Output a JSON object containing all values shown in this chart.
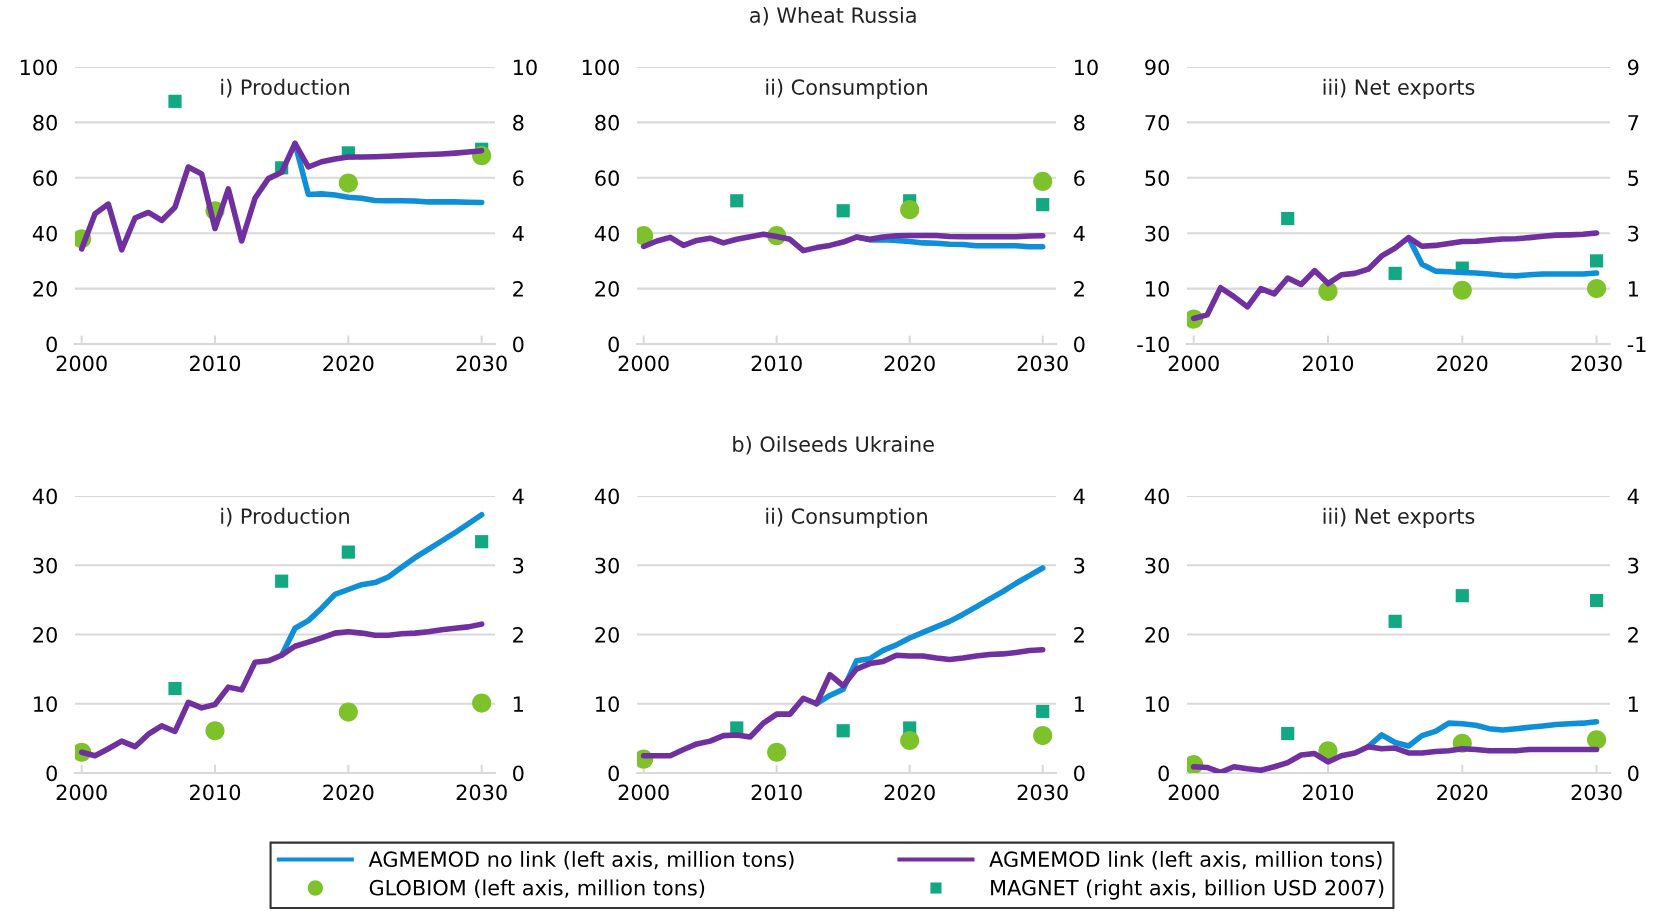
{
  "chart_data": [
    {
      "type": "line",
      "title": "i) Production",
      "ylim": [
        0,
        100
      ],
      "yticks": [
        0,
        20,
        40,
        60,
        80,
        100
      ],
      "y2lim": [
        0,
        10
      ],
      "y2ticks": [
        0,
        2,
        4,
        6,
        8,
        10
      ],
      "xlim": [
        1999.5,
        2031
      ],
      "xticks": [
        2000,
        2010,
        2020,
        2030
      ],
      "grid": "y",
      "legend": "bottom",
      "series": [
        {
          "name": "AGMEMOD no link (left axis, million tons)",
          "color": "#0f8fd8",
          "x": [
            2016,
            2017,
            2018,
            2019,
            2020,
            2021,
            2022,
            2023,
            2024,
            2025,
            2026,
            2027,
            2028,
            2029,
            2030
          ],
          "values": [
            72.4,
            54,
            54.2,
            53.8,
            53,
            52.6,
            51.8,
            51.7,
            51.7,
            51.6,
            51.3,
            51.3,
            51.3,
            51.2,
            51.1
          ]
        },
        {
          "name": "AGMEMOD link (left axis, million tons)",
          "color": "#7030a0",
          "x": [
            2000,
            2001,
            2002,
            2003,
            2004,
            2005,
            2006,
            2007,
            2008,
            2009,
            2010,
            2011,
            2012,
            2013,
            2014,
            2015,
            2016,
            2017,
            2018,
            2019,
            2020,
            2021,
            2022,
            2023,
            2024,
            2025,
            2026,
            2027,
            2028,
            2029,
            2030
          ],
          "values": [
            34.3,
            47,
            50.5,
            34,
            45.5,
            47.5,
            44.6,
            49.4,
            63.9,
            61.4,
            41.7,
            56,
            37.2,
            52.6,
            59.7,
            62,
            72.4,
            63.9,
            65.8,
            66.8,
            67.5,
            67.5,
            67.6,
            67.8,
            68,
            68.2,
            68.4,
            68.6,
            68.9,
            69.3,
            69.8
          ]
        },
        {
          "name": "GLOBIOM (left axis, million tons)",
          "type": "scatter",
          "marker": "circle",
          "color": "#7dc22a",
          "x": [
            2000,
            2010,
            2020,
            2030
          ],
          "values": [
            38,
            48.1,
            58.1,
            68
          ]
        },
        {
          "name": "MAGNET (right axis, billion USD 2007)",
          "type": "scatter",
          "marker": "square",
          "axis": "y2",
          "color": "#11a882",
          "x": [
            2007,
            2015,
            2020,
            2030
          ],
          "values": [
            8.76,
            6.36,
            6.9,
            7.03
          ]
        }
      ]
    },
    {
      "type": "line",
      "subtitle": "a) Wheat Russia",
      "title": "ii) Consumption",
      "ylim": [
        0,
        100
      ],
      "yticks": [
        0,
        20,
        40,
        60,
        80,
        100
      ],
      "y2lim": [
        0,
        10
      ],
      "y2ticks": [
        0,
        2,
        4,
        6,
        8,
        10
      ],
      "xlim": [
        1999.5,
        2031
      ],
      "xticks": [
        2000,
        2010,
        2020,
        2030
      ],
      "grid": "y",
      "legend": "bottom",
      "series": [
        {
          "name": "AGMEMOD no link (left axis, million tons)",
          "color": "#0f8fd8",
          "x": [
            2016,
            2017,
            2018,
            2019,
            2020,
            2021,
            2022,
            2023,
            2024,
            2025,
            2026,
            2027,
            2028,
            2029,
            2030
          ],
          "values": [
            38.6,
            37.6,
            37.6,
            37.4,
            37,
            36.5,
            36.4,
            36,
            35.9,
            35.5,
            35.5,
            35.5,
            35.5,
            35.1,
            35.1
          ]
        },
        {
          "name": "AGMEMOD link (left axis, million tons)",
          "color": "#7030a0",
          "x": [
            2000,
            2001,
            2002,
            2003,
            2004,
            2005,
            2006,
            2007,
            2008,
            2009,
            2010,
            2011,
            2012,
            2013,
            2014,
            2015,
            2016,
            2017,
            2018,
            2019,
            2020,
            2021,
            2022,
            2023,
            2024,
            2025,
            2026,
            2027,
            2028,
            2029,
            2030
          ],
          "values": [
            35.2,
            37.2,
            38.5,
            35.6,
            37.4,
            38.2,
            36.5,
            37.8,
            38.7,
            39.6,
            38.8,
            37.8,
            33.7,
            34.8,
            35.6,
            36.8,
            38.6,
            37.8,
            38.6,
            39.1,
            39.2,
            39.2,
            39.2,
            38.8,
            38.7,
            38.7,
            38.7,
            38.7,
            38.7,
            39,
            39.1
          ]
        },
        {
          "name": "GLOBIOM (left axis, million tons)",
          "type": "scatter",
          "marker": "circle",
          "color": "#7dc22a",
          "x": [
            2000,
            2010,
            2020,
            2030
          ],
          "values": [
            39.1,
            39.1,
            48.5,
            58.7
          ]
        },
        {
          "name": "MAGNET (right axis, billion USD 2007)",
          "type": "scatter",
          "marker": "square",
          "axis": "y2",
          "color": "#11a882",
          "x": [
            2007,
            2015,
            2020,
            2030
          ],
          "values": [
            5.17,
            4.81,
            5.17,
            5.03
          ]
        }
      ]
    },
    {
      "type": "line",
      "title": "iii) Net exports",
      "ylim": [
        -10,
        90
      ],
      "yticks": [
        -10,
        10,
        30,
        50,
        70,
        90
      ],
      "y2lim": [
        -1,
        9
      ],
      "y2ticks": [
        -1,
        1,
        3,
        5,
        7,
        9
      ],
      "xlim": [
        1999.5,
        2031
      ],
      "xticks": [
        2000,
        2010,
        2020,
        2030
      ],
      "grid": "y",
      "legend": "bottom",
      "series": [
        {
          "name": "AGMEMOD no link (left axis, million tons)",
          "color": "#0f8fd8",
          "x": [
            2016,
            2017,
            2018,
            2019,
            2020,
            2021,
            2022,
            2023,
            2024,
            2025,
            2026,
            2027,
            2028,
            2029,
            2030
          ],
          "values": [
            28.4,
            18.8,
            16.3,
            16.1,
            15.8,
            15.6,
            15.3,
            14.8,
            14.6,
            15,
            15.3,
            15.3,
            15.3,
            15.3,
            15.6
          ]
        },
        {
          "name": "AGMEMOD link (left axis, million tons)",
          "color": "#7030a0",
          "x": [
            2000,
            2001,
            2002,
            2003,
            2004,
            2005,
            2006,
            2007,
            2008,
            2009,
            2010,
            2011,
            2012,
            2013,
            2014,
            2015,
            2016,
            2017,
            2018,
            2019,
            2020,
            2021,
            2022,
            2023,
            2024,
            2025,
            2026,
            2027,
            2028,
            2029,
            2030
          ],
          "values": [
            -0.8,
            0.5,
            10.3,
            7.1,
            3.4,
            10,
            8.1,
            13.8,
            11.5,
            16.5,
            11.8,
            15,
            15.5,
            17,
            21.8,
            24.6,
            28.4,
            25.3,
            25.6,
            26.3,
            27,
            27.1,
            27.5,
            27.9,
            28,
            28.4,
            28.9,
            29.3,
            29.4,
            29.6,
            30.1
          ]
        },
        {
          "name": "GLOBIOM (left axis, million tons)",
          "type": "scatter",
          "marker": "circle",
          "color": "#7dc22a",
          "x": [
            2000,
            2010,
            2020,
            2030
          ],
          "values": [
            -1,
            9,
            9.4,
            10
          ]
        },
        {
          "name": "MAGNET (right axis, billion USD 2007)",
          "type": "scatter",
          "marker": "square",
          "axis": "y2",
          "color": "#11a882",
          "x": [
            2007,
            2015,
            2020,
            2030
          ],
          "values": [
            3.53,
            1.55,
            1.74,
            2.0
          ]
        }
      ]
    },
    {
      "type": "line",
      "title": "i) Production",
      "ylim": [
        0,
        40
      ],
      "yticks": [
        0,
        10,
        20,
        30,
        40
      ],
      "y2lim": [
        0,
        4
      ],
      "y2ticks": [
        0,
        1,
        2,
        3,
        4
      ],
      "xlim": [
        1999.5,
        2031
      ],
      "xticks": [
        2000,
        2010,
        2020,
        2030
      ],
      "grid": "y",
      "legend": "bottom",
      "series": [
        {
          "name": "AGMEMOD no link (left axis, million tons)",
          "color": "#0f8fd8",
          "x": [
            2015,
            2016,
            2017,
            2018,
            2019,
            2020,
            2021,
            2022,
            2023,
            2024,
            2025,
            2026,
            2027,
            2028,
            2029,
            2030
          ],
          "values": [
            17,
            20.9,
            22,
            23.8,
            25.8,
            26.5,
            27.2,
            27.5,
            28.3,
            29.7,
            31.1,
            32.3,
            33.5,
            34.7,
            36,
            37.3
          ]
        },
        {
          "name": "AGMEMOD link (left axis, million tons)",
          "color": "#7030a0",
          "x": [
            2000,
            2001,
            2002,
            2003,
            2004,
            2005,
            2006,
            2007,
            2008,
            2009,
            2010,
            2011,
            2012,
            2013,
            2014,
            2015,
            2016,
            2017,
            2018,
            2019,
            2020,
            2021,
            2022,
            2023,
            2024,
            2025,
            2026,
            2027,
            2028,
            2029,
            2030
          ],
          "values": [
            3,
            2.5,
            3.5,
            4.6,
            3.8,
            5.6,
            6.8,
            6,
            10.2,
            9.4,
            9.9,
            12.4,
            12,
            16,
            16.2,
            17,
            18.3,
            18.9,
            19.5,
            20.2,
            20.4,
            20.2,
            19.9,
            19.9,
            20.1,
            20.2,
            20.4,
            20.7,
            20.9,
            21.1,
            21.5
          ]
        },
        {
          "name": "GLOBIOM (left axis, million tons)",
          "type": "scatter",
          "marker": "circle",
          "color": "#7dc22a",
          "x": [
            2000,
            2010,
            2020,
            2030
          ],
          "values": [
            3,
            6.1,
            8.8,
            10.1
          ]
        },
        {
          "name": "MAGNET (right axis, billion USD 2007)",
          "type": "scatter",
          "marker": "square",
          "axis": "y2",
          "color": "#11a882",
          "x": [
            2007,
            2015,
            2020,
            2030
          ],
          "values": [
            1.22,
            2.77,
            3.19,
            3.34
          ]
        }
      ]
    },
    {
      "type": "line",
      "subtitle": "b) Oilseeds Ukraine",
      "title": "ii) Consumption",
      "ylim": [
        0,
        40
      ],
      "yticks": [
        0,
        10,
        20,
        30,
        40
      ],
      "y2lim": [
        0,
        4
      ],
      "y2ticks": [
        0,
        1,
        2,
        3,
        4
      ],
      "xlim": [
        1999.5,
        2031
      ],
      "xticks": [
        2000,
        2010,
        2020,
        2030
      ],
      "grid": "y",
      "legend": "bottom",
      "series": [
        {
          "name": "AGMEMOD no link (left axis, million tons)",
          "color": "#0f8fd8",
          "x": [
            2013,
            2014,
            2015,
            2016,
            2017,
            2018,
            2019,
            2020,
            2021,
            2022,
            2023,
            2024,
            2025,
            2026,
            2027,
            2028,
            2029,
            2030
          ],
          "values": [
            10,
            11.2,
            12.1,
            16.2,
            16.5,
            17.7,
            18.5,
            19.5,
            20.3,
            21.1,
            21.9,
            22.9,
            24,
            25.1,
            26.2,
            27.4,
            28.5,
            29.6
          ]
        },
        {
          "name": "AGMEMOD link (left axis, million tons)",
          "color": "#7030a0",
          "x": [
            2000,
            2001,
            2002,
            2003,
            2004,
            2005,
            2006,
            2007,
            2008,
            2009,
            2010,
            2011,
            2012,
            2013,
            2014,
            2015,
            2016,
            2017,
            2018,
            2019,
            2020,
            2021,
            2022,
            2023,
            2024,
            2025,
            2026,
            2027,
            2028,
            2029,
            2030
          ],
          "values": [
            2.5,
            2.5,
            2.5,
            3.4,
            4.2,
            4.6,
            5.4,
            5.5,
            5.2,
            7.2,
            8.5,
            8.5,
            10.8,
            10,
            14.2,
            12.6,
            15,
            15.8,
            16.1,
            17,
            16.9,
            16.9,
            16.6,
            16.4,
            16.6,
            16.9,
            17.1,
            17.2,
            17.4,
            17.7,
            17.8
          ]
        },
        {
          "name": "GLOBIOM (left axis, million tons)",
          "type": "scatter",
          "marker": "circle",
          "color": "#7dc22a",
          "x": [
            2000,
            2010,
            2020,
            2030
          ],
          "values": [
            2,
            3,
            4.7,
            5.4
          ]
        },
        {
          "name": "MAGNET (right axis, billion USD 2007)",
          "type": "scatter",
          "marker": "square",
          "axis": "y2",
          "color": "#11a882",
          "x": [
            2007,
            2015,
            2020,
            2030
          ],
          "values": [
            0.65,
            0.61,
            0.65,
            0.89
          ]
        }
      ]
    },
    {
      "type": "line",
      "title": "iii) Net exports",
      "ylim": [
        0,
        40
      ],
      "yticks": [
        0,
        10,
        20,
        30,
        40
      ],
      "y2lim": [
        0,
        4
      ],
      "y2ticks": [
        0,
        1,
        2,
        3,
        4
      ],
      "xlim": [
        1999.5,
        2031
      ],
      "xticks": [
        2000,
        2010,
        2020,
        2030
      ],
      "grid": "y",
      "legend": "bottom",
      "series": [
        {
          "name": "AGMEMOD no link (left axis, million tons)",
          "color": "#0f8fd8",
          "x": [
            2013,
            2014,
            2015,
            2016,
            2017,
            2018,
            2019,
            2020,
            2021,
            2022,
            2023,
            2024,
            2025,
            2026,
            2027,
            2028,
            2029,
            2030
          ],
          "values": [
            3.8,
            5.5,
            4.4,
            3.9,
            5.4,
            6,
            7.2,
            7.1,
            6.9,
            6.4,
            6.2,
            6.4,
            6.6,
            6.8,
            7,
            7.1,
            7.2,
            7.4
          ]
        },
        {
          "name": "AGMEMOD link (left axis, million tons)",
          "color": "#7030a0",
          "x": [
            2000,
            2001,
            2002,
            2003,
            2004,
            2005,
            2006,
            2007,
            2008,
            2009,
            2010,
            2011,
            2012,
            2013,
            2014,
            2015,
            2016,
            2017,
            2018,
            2019,
            2020,
            2021,
            2022,
            2023,
            2024,
            2025,
            2026,
            2027,
            2028,
            2029,
            2030
          ],
          "values": [
            0.9,
            0.8,
            0.1,
            0.9,
            0.6,
            0.4,
            0.9,
            1.5,
            2.6,
            2.8,
            1.6,
            2.5,
            2.9,
            3.8,
            3.5,
            3.6,
            2.9,
            2.9,
            3.1,
            3.2,
            3.5,
            3.4,
            3.2,
            3.2,
            3.2,
            3.4,
            3.4,
            3.4,
            3.4,
            3.4,
            3.4
          ]
        },
        {
          "name": "GLOBIOM (left axis, million tons)",
          "type": "scatter",
          "marker": "circle",
          "color": "#7dc22a",
          "x": [
            2000,
            2010,
            2020,
            2030
          ],
          "values": [
            1.2,
            3.2,
            4.3,
            4.8
          ]
        },
        {
          "name": "MAGNET (right axis, billion USD 2007)",
          "type": "scatter",
          "marker": "square",
          "axis": "y2",
          "color": "#11a882",
          "x": [
            2007,
            2015,
            2020,
            2030
          ],
          "values": [
            0.57,
            2.19,
            2.56,
            2.49
          ]
        }
      ]
    }
  ]
}
